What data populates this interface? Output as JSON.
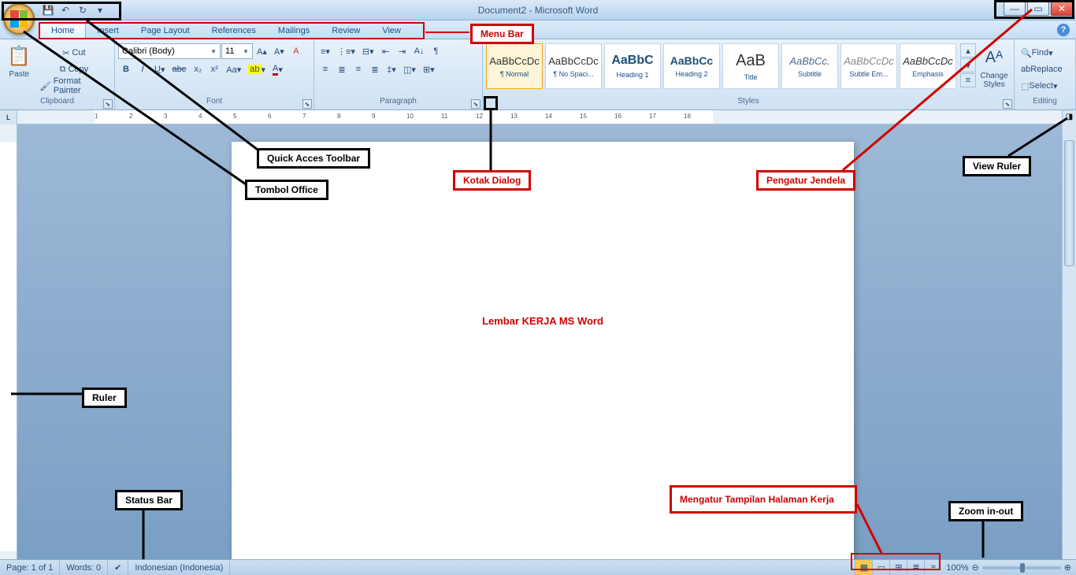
{
  "title": "Document2 - Microsoft Word",
  "tabs": [
    "Home",
    "Insert",
    "Page Layout",
    "References",
    "Mailings",
    "Review",
    "View"
  ],
  "clipboard": {
    "label": "Clipboard",
    "paste": "Paste",
    "cut": "Cut",
    "copy": "Copy",
    "fp": "Format Painter"
  },
  "font": {
    "label": "Font",
    "name": "Calibri (Body)",
    "size": "11"
  },
  "paragraph": {
    "label": "Paragraph"
  },
  "styles": {
    "label": "Styles",
    "items": [
      {
        "prev": "AaBbCcDc",
        "name": "¶ Normal",
        "sel": true,
        "color": "#333"
      },
      {
        "prev": "AaBbCcDc",
        "name": "¶ No Spaci...",
        "sel": false,
        "color": "#333"
      },
      {
        "prev": "AaBbC",
        "name": "Heading 1",
        "sel": false,
        "color": "#1f4e79",
        "size": "16px",
        "weight": "bold"
      },
      {
        "prev": "AaBbCc",
        "name": "Heading 2",
        "sel": false,
        "color": "#1f4e79",
        "size": "14px",
        "weight": "bold"
      },
      {
        "prev": "AaB",
        "name": "Title",
        "sel": false,
        "color": "#333",
        "size": "20px"
      },
      {
        "prev": "AaBbCc.",
        "name": "Subtitle",
        "sel": false,
        "color": "#4a6a8a",
        "style": "italic"
      },
      {
        "prev": "AaBbCcDc",
        "name": "Subtle Em...",
        "sel": false,
        "color": "#888",
        "style": "italic"
      },
      {
        "prev": "AaBbCcDc",
        "name": "Emphasis",
        "sel": false,
        "color": "#333",
        "style": "italic"
      }
    ],
    "change": "Change Styles"
  },
  "editing": {
    "label": "Editing",
    "find": "Find",
    "replace": "Replace",
    "select": "Select"
  },
  "status": {
    "page": "Page: 1 of 1",
    "words": "Words: 0",
    "lang": "Indonesian (Indonesia)",
    "zoom": "100%"
  },
  "page_text": "Lembar KERJA MS Word",
  "callouts": {
    "menubar": "Menu Bar",
    "qat": "Quick Acces Toolbar",
    "office": "Tombol Office",
    "dialog": "Kotak Dialog",
    "window": "Pengatur Jendela",
    "viewruler": "View Ruler",
    "ruler": "Ruler",
    "statusbar": "Status Bar",
    "viewmode": "Mengatur Tampilan Halaman Kerja",
    "zoom": "Zoom in-out"
  },
  "ruler_nums": [
    1,
    2,
    3,
    4,
    5,
    6,
    7,
    8,
    9,
    10,
    11,
    12,
    13,
    14,
    15,
    16,
    17,
    18
  ]
}
